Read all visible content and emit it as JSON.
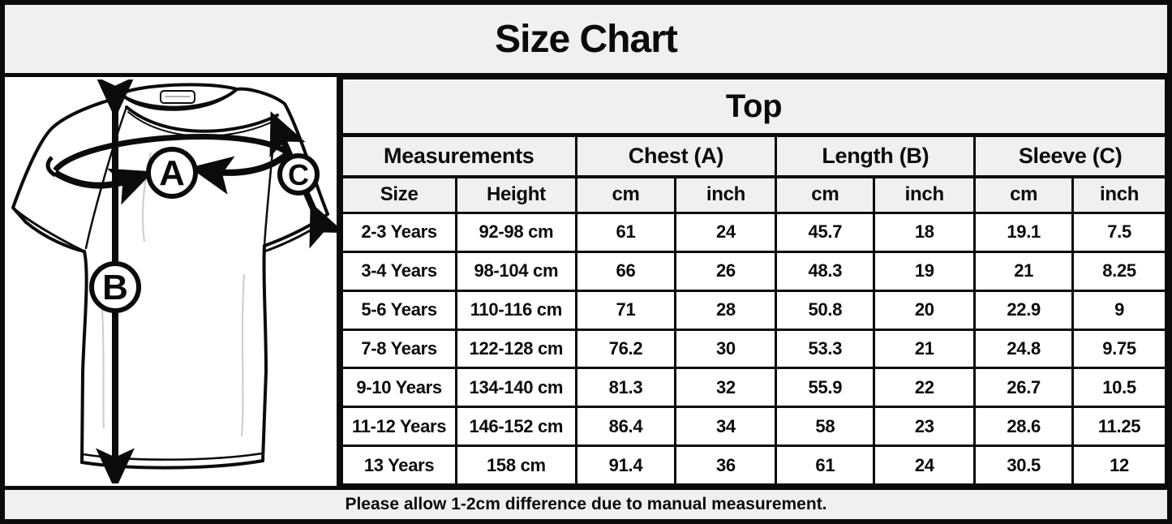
{
  "title": "Size Chart",
  "illustration": {
    "description": "t-shirt line drawing with measurement arrows",
    "label_a": "A",
    "label_b": "B",
    "label_c": "C"
  },
  "table": {
    "title": "Top",
    "group_headers": [
      {
        "label": "Measurements",
        "colspan": 2
      },
      {
        "label": "Chest (A)",
        "colspan": 2
      },
      {
        "label": "Length (B)",
        "colspan": 2
      },
      {
        "label": "Sleeve (C)",
        "colspan": 2
      }
    ],
    "sub_headers": [
      "Size",
      "Height",
      "cm",
      "inch",
      "cm",
      "inch",
      "cm",
      "inch"
    ],
    "rows": [
      [
        "2-3 Years",
        "92-98 cm",
        "61",
        "24",
        "45.7",
        "18",
        "19.1",
        "7.5"
      ],
      [
        "3-4 Years",
        "98-104 cm",
        "66",
        "26",
        "48.3",
        "19",
        "21",
        "8.25"
      ],
      [
        "5-6 Years",
        "110-116 cm",
        "71",
        "28",
        "50.8",
        "20",
        "22.9",
        "9"
      ],
      [
        "7-8 Years",
        "122-128 cm",
        "76.2",
        "30",
        "53.3",
        "21",
        "24.8",
        "9.75"
      ],
      [
        "9-10 Years",
        "134-140 cm",
        "81.3",
        "32",
        "55.9",
        "22",
        "26.7",
        "10.5"
      ],
      [
        "11-12 Years",
        "146-152 cm",
        "86.4",
        "34",
        "58",
        "23",
        "28.6",
        "11.25"
      ],
      [
        "13 Years",
        "158 cm",
        "91.4",
        "36",
        "61",
        "24",
        "30.5",
        "12"
      ]
    ]
  },
  "footer": {
    "note": "Please allow 1-2cm difference due to manual measurement."
  },
  "colors": {
    "header_bg": "#f0f0f0",
    "cell_bg": "#ffffff",
    "border": "#0b0b0b",
    "ink": "#0b0b0b"
  }
}
